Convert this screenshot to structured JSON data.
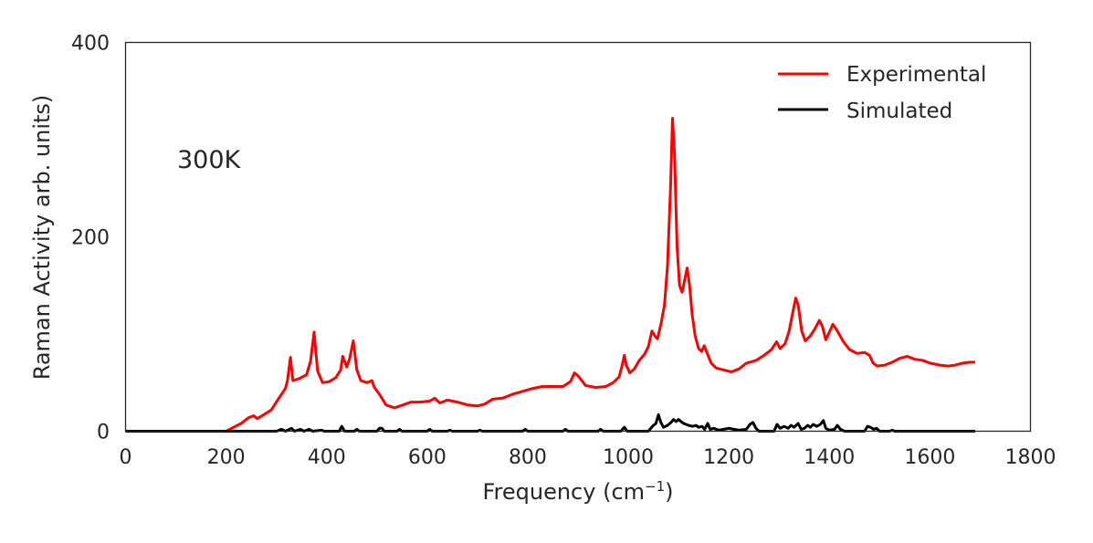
{
  "chart_data": {
    "type": "line",
    "xlabel": "Frequency (cm",
    "xlabel_sup": "−1",
    "xlabel_close": ")",
    "ylabel": "Raman Activity arb. units)",
    "xlim": [
      0,
      1800
    ],
    "ylim": [
      0,
      400
    ],
    "xticks": [
      0,
      200,
      400,
      600,
      800,
      1000,
      1200,
      1400,
      1600,
      1800
    ],
    "yticks": [
      0,
      200,
      400
    ],
    "grid": false,
    "legend_position": "top-right",
    "annotation": "300K",
    "series": [
      {
        "name": "Experimental",
        "color": "#ff0000",
        "points": [
          [
            200,
            0
          ],
          [
            215,
            4
          ],
          [
            230,
            8
          ],
          [
            245,
            14
          ],
          [
            255,
            16
          ],
          [
            262,
            13
          ],
          [
            275,
            17
          ],
          [
            290,
            22
          ],
          [
            305,
            34
          ],
          [
            318,
            44
          ],
          [
            322,
            52
          ],
          [
            328,
            76
          ],
          [
            333,
            52
          ],
          [
            345,
            54
          ],
          [
            360,
            58
          ],
          [
            368,
            72
          ],
          [
            375,
            102
          ],
          [
            382,
            62
          ],
          [
            392,
            50
          ],
          [
            405,
            51
          ],
          [
            418,
            55
          ],
          [
            428,
            63
          ],
          [
            432,
            77
          ],
          [
            440,
            66
          ],
          [
            446,
            75
          ],
          [
            453,
            93
          ],
          [
            460,
            63
          ],
          [
            468,
            52
          ],
          [
            480,
            50
          ],
          [
            490,
            52
          ],
          [
            495,
            45
          ],
          [
            505,
            38
          ],
          [
            518,
            27
          ],
          [
            535,
            24
          ],
          [
            552,
            27
          ],
          [
            568,
            30
          ],
          [
            585,
            30
          ],
          [
            605,
            31
          ],
          [
            615,
            34
          ],
          [
            625,
            29
          ],
          [
            640,
            32
          ],
          [
            660,
            30
          ],
          [
            680,
            27
          ],
          [
            700,
            26
          ],
          [
            715,
            28
          ],
          [
            730,
            33
          ],
          [
            750,
            34
          ],
          [
            770,
            38
          ],
          [
            790,
            41
          ],
          [
            810,
            44
          ],
          [
            830,
            46
          ],
          [
            850,
            46
          ],
          [
            870,
            46
          ],
          [
            885,
            51
          ],
          [
            893,
            60
          ],
          [
            900,
            57
          ],
          [
            915,
            47
          ],
          [
            935,
            45
          ],
          [
            955,
            46
          ],
          [
            970,
            50
          ],
          [
            982,
            56
          ],
          [
            988,
            68
          ],
          [
            992,
            78
          ],
          [
            996,
            68
          ],
          [
            1003,
            60
          ],
          [
            1012,
            64
          ],
          [
            1022,
            73
          ],
          [
            1032,
            79
          ],
          [
            1040,
            87
          ],
          [
            1047,
            103
          ],
          [
            1053,
            98
          ],
          [
            1058,
            95
          ],
          [
            1065,
            110
          ],
          [
            1072,
            130
          ],
          [
            1078,
            170
          ],
          [
            1084,
            250
          ],
          [
            1088,
            322
          ],
          [
            1092,
            285
          ],
          [
            1097,
            190
          ],
          [
            1102,
            150
          ],
          [
            1107,
            143
          ],
          [
            1112,
            155
          ],
          [
            1117,
            168
          ],
          [
            1122,
            150
          ],
          [
            1127,
            120
          ],
          [
            1133,
            98
          ],
          [
            1140,
            85
          ],
          [
            1146,
            82
          ],
          [
            1151,
            88
          ],
          [
            1157,
            80
          ],
          [
            1165,
            70
          ],
          [
            1175,
            65
          ],
          [
            1190,
            63
          ],
          [
            1205,
            61
          ],
          [
            1220,
            64
          ],
          [
            1235,
            70
          ],
          [
            1255,
            73
          ],
          [
            1270,
            78
          ],
          [
            1285,
            84
          ],
          [
            1295,
            92
          ],
          [
            1302,
            85
          ],
          [
            1312,
            90
          ],
          [
            1320,
            103
          ],
          [
            1328,
            124
          ],
          [
            1333,
            137
          ],
          [
            1338,
            130
          ],
          [
            1345,
            103
          ],
          [
            1352,
            93
          ],
          [
            1362,
            98
          ],
          [
            1372,
            106
          ],
          [
            1380,
            114
          ],
          [
            1386,
            108
          ],
          [
            1393,
            94
          ],
          [
            1400,
            102
          ],
          [
            1407,
            110
          ],
          [
            1415,
            104
          ],
          [
            1428,
            92
          ],
          [
            1440,
            84
          ],
          [
            1455,
            80
          ],
          [
            1470,
            81
          ],
          [
            1480,
            78
          ],
          [
            1487,
            70
          ],
          [
            1495,
            67
          ],
          [
            1510,
            68
          ],
          [
            1525,
            71
          ],
          [
            1540,
            75
          ],
          [
            1555,
            77
          ],
          [
            1570,
            74
          ],
          [
            1585,
            73
          ],
          [
            1600,
            70
          ],
          [
            1620,
            68
          ],
          [
            1635,
            67
          ],
          [
            1650,
            68
          ],
          [
            1665,
            70
          ],
          [
            1680,
            71
          ],
          [
            1690,
            71
          ]
        ]
      },
      {
        "name": "Simulated",
        "color": "#000000",
        "points": [
          [
            0,
            0
          ],
          [
            300,
            0
          ],
          [
            310,
            2
          ],
          [
            318,
            0
          ],
          [
            330,
            3
          ],
          [
            336,
            0
          ],
          [
            348,
            2
          ],
          [
            355,
            0
          ],
          [
            365,
            2
          ],
          [
            372,
            0
          ],
          [
            390,
            1
          ],
          [
            395,
            0
          ],
          [
            425,
            0
          ],
          [
            430,
            5
          ],
          [
            436,
            0
          ],
          [
            455,
            0
          ],
          [
            460,
            2
          ],
          [
            465,
            0
          ],
          [
            500,
            0
          ],
          [
            505,
            3
          ],
          [
            510,
            3
          ],
          [
            515,
            0
          ],
          [
            540,
            0
          ],
          [
            545,
            2
          ],
          [
            550,
            0
          ],
          [
            600,
            0
          ],
          [
            605,
            2
          ],
          [
            610,
            0
          ],
          [
            640,
            0
          ],
          [
            645,
            1
          ],
          [
            650,
            0
          ],
          [
            700,
            0
          ],
          [
            705,
            1
          ],
          [
            710,
            0
          ],
          [
            790,
            0
          ],
          [
            795,
            2
          ],
          [
            800,
            0
          ],
          [
            870,
            0
          ],
          [
            875,
            2
          ],
          [
            880,
            0
          ],
          [
            940,
            0
          ],
          [
            945,
            2
          ],
          [
            950,
            0
          ],
          [
            985,
            0
          ],
          [
            992,
            4
          ],
          [
            998,
            0
          ],
          [
            1040,
            0
          ],
          [
            1048,
            5
          ],
          [
            1055,
            8
          ],
          [
            1060,
            17
          ],
          [
            1065,
            9
          ],
          [
            1070,
            4
          ],
          [
            1078,
            6
          ],
          [
            1085,
            9
          ],
          [
            1090,
            12
          ],
          [
            1095,
            10
          ],
          [
            1100,
            12
          ],
          [
            1105,
            10
          ],
          [
            1110,
            8
          ],
          [
            1115,
            7
          ],
          [
            1120,
            6
          ],
          [
            1128,
            5
          ],
          [
            1135,
            6
          ],
          [
            1140,
            4
          ],
          [
            1147,
            5
          ],
          [
            1152,
            2
          ],
          [
            1158,
            8
          ],
          [
            1163,
            2
          ],
          [
            1170,
            3
          ],
          [
            1180,
            1
          ],
          [
            1190,
            2
          ],
          [
            1200,
            3
          ],
          [
            1210,
            2
          ],
          [
            1220,
            1
          ],
          [
            1235,
            2
          ],
          [
            1242,
            7
          ],
          [
            1248,
            9
          ],
          [
            1254,
            3
          ],
          [
            1260,
            0
          ],
          [
            1290,
            0
          ],
          [
            1296,
            7
          ],
          [
            1302,
            3
          ],
          [
            1310,
            5
          ],
          [
            1318,
            3
          ],
          [
            1324,
            6
          ],
          [
            1330,
            4
          ],
          [
            1338,
            8
          ],
          [
            1344,
            2
          ],
          [
            1350,
            3
          ],
          [
            1357,
            6
          ],
          [
            1362,
            4
          ],
          [
            1368,
            7
          ],
          [
            1375,
            5
          ],
          [
            1382,
            7
          ],
          [
            1388,
            11
          ],
          [
            1393,
            3
          ],
          [
            1400,
            1
          ],
          [
            1410,
            2
          ],
          [
            1416,
            6
          ],
          [
            1422,
            2
          ],
          [
            1430,
            0
          ],
          [
            1470,
            0
          ],
          [
            1476,
            5
          ],
          [
            1482,
            4
          ],
          [
            1488,
            2
          ],
          [
            1494,
            3
          ],
          [
            1500,
            0
          ],
          [
            1520,
            0
          ],
          [
            1525,
            1
          ],
          [
            1530,
            0
          ],
          [
            1690,
            0
          ]
        ]
      }
    ]
  }
}
